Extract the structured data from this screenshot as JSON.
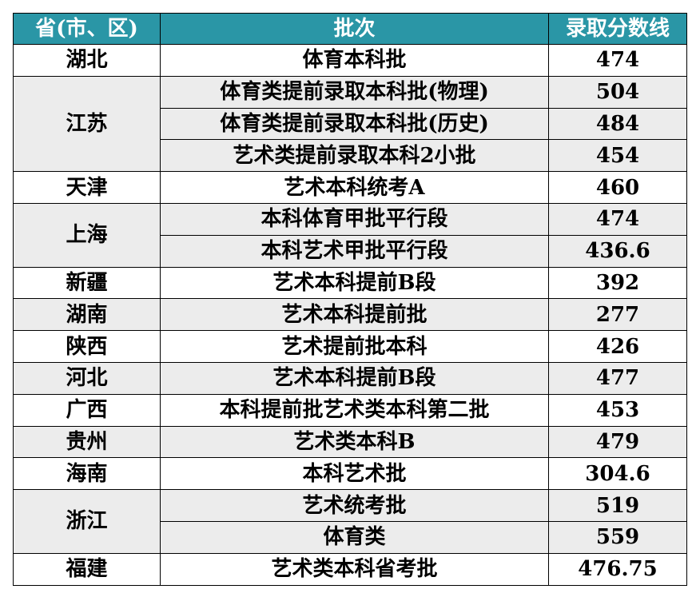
{
  "colors": {
    "header_bg": "#2a96a6",
    "header_text": "#ffffff",
    "alt_row_bg": "#ececec"
  },
  "header": {
    "province": "省(市、区)",
    "batch": "批次",
    "score": "录取分数线"
  },
  "rows": [
    {
      "province": "湖北",
      "shade": "white",
      "entries": [
        {
          "batch": "体育本科批",
          "score": "474"
        }
      ]
    },
    {
      "province": "江苏",
      "shade": "grey",
      "entries": [
        {
          "batch": "体育类提前录取本科批(物理)",
          "score": "504"
        },
        {
          "batch": "体育类提前录取本科批(历史)",
          "score": "484"
        },
        {
          "batch": "艺术类提前录取本科2小批",
          "score": "454"
        }
      ]
    },
    {
      "province": "天津",
      "shade": "white",
      "entries": [
        {
          "batch": "艺术本科统考A",
          "score": "460"
        }
      ]
    },
    {
      "province": "上海",
      "shade": "grey",
      "entries": [
        {
          "batch": "本科体育甲批平行段",
          "score": "474"
        },
        {
          "batch": "本科艺术甲批平行段",
          "score": "436.6"
        }
      ]
    },
    {
      "province": "新疆",
      "shade": "white",
      "entries": [
        {
          "batch": "艺术本科提前B段",
          "score": "392"
        }
      ]
    },
    {
      "province": "湖南",
      "shade": "grey",
      "entries": [
        {
          "batch": "艺术本科提前批",
          "score": "277"
        }
      ]
    },
    {
      "province": "陕西",
      "shade": "white",
      "entries": [
        {
          "batch": "艺术提前批本科",
          "score": "426"
        }
      ]
    },
    {
      "province": "河北",
      "shade": "grey",
      "entries": [
        {
          "batch": "艺术本科提前B段",
          "score": "477"
        }
      ]
    },
    {
      "province": "广西",
      "shade": "white",
      "entries": [
        {
          "batch": "本科提前批艺术类本科第二批",
          "score": "453"
        }
      ]
    },
    {
      "province": "贵州",
      "shade": "grey",
      "entries": [
        {
          "batch": "艺术类本科B",
          "score": "479"
        }
      ]
    },
    {
      "province": "海南",
      "shade": "white",
      "entries": [
        {
          "batch": "本科艺术批",
          "score": "304.6"
        }
      ]
    },
    {
      "province": "浙江",
      "shade": "grey",
      "entries": [
        {
          "batch": "艺术统考批",
          "score": "519"
        },
        {
          "batch": "体育类",
          "score": "559"
        }
      ]
    },
    {
      "province": "福建",
      "shade": "white",
      "entries": [
        {
          "batch": "艺术类本科省考批",
          "score": "476.75"
        }
      ]
    }
  ]
}
